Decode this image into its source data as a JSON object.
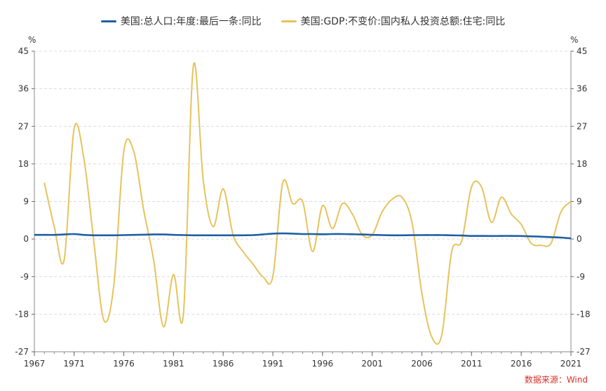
{
  "legend": [
    {
      "label": "美国:总人口:年度:最后一条:同比",
      "color": "#1f5fa5"
    },
    {
      "label": "美国:GDP:不变价:国内私人投资总额:住宅:同比",
      "color": "#e6c35c"
    }
  ],
  "source": "数据来源：Wind",
  "axis": {
    "left_unit": "%",
    "right_unit": "%"
  },
  "chart_data": {
    "type": "line",
    "xlim": [
      1967,
      2021
    ],
    "ylim": [
      -27,
      45
    ],
    "yticks": [
      45,
      36,
      27,
      18,
      9,
      0,
      -9,
      -18,
      -27
    ],
    "xticks": [
      1967,
      1971,
      1976,
      1981,
      1986,
      1991,
      1996,
      2001,
      2006,
      2011,
      2016,
      2021
    ],
    "grid": true,
    "legend_position": "top-center",
    "series": [
      {
        "name": "美国:总人口:年度:最后一条:同比",
        "color": "#1f5fa5",
        "x": [
          1967,
          1968,
          1969,
          1970,
          1971,
          1972,
          1973,
          1974,
          1975,
          1976,
          1977,
          1978,
          1979,
          1980,
          1981,
          1982,
          1983,
          1984,
          1985,
          1986,
          1987,
          1988,
          1989,
          1990,
          1991,
          1992,
          1993,
          1994,
          1995,
          1996,
          1997,
          1998,
          1999,
          2000,
          2001,
          2002,
          2003,
          2004,
          2005,
          2006,
          2007,
          2008,
          2009,
          2010,
          2011,
          2012,
          2013,
          2014,
          2015,
          2016,
          2017,
          2018,
          2019,
          2020,
          2021
        ],
        "y": [
          1.0,
          1.0,
          1.0,
          1.1,
          1.2,
          1.0,
          0.9,
          0.9,
          0.9,
          0.95,
          1.0,
          1.05,
          1.1,
          1.1,
          1.0,
          0.95,
          0.9,
          0.9,
          0.9,
          0.9,
          0.9,
          0.9,
          0.95,
          1.1,
          1.3,
          1.35,
          1.3,
          1.2,
          1.2,
          1.15,
          1.2,
          1.2,
          1.15,
          1.1,
          1.0,
          0.95,
          0.9,
          0.9,
          0.92,
          0.95,
          0.95,
          0.95,
          0.9,
          0.85,
          0.75,
          0.75,
          0.72,
          0.75,
          0.75,
          0.72,
          0.65,
          0.55,
          0.45,
          0.35,
          0.15
        ]
      },
      {
        "name": "美国:GDP:不变价:国内私人投资总额:住宅:同比",
        "color": "#e6c35c",
        "x": [
          1968,
          1969,
          1970,
          1971,
          1972,
          1973,
          1974,
          1975,
          1976,
          1977,
          1978,
          1979,
          1980,
          1981,
          1982,
          1983,
          1984,
          1985,
          1986,
          1987,
          1988,
          1989,
          1990,
          1991,
          1992,
          1993,
          1994,
          1995,
          1996,
          1997,
          1998,
          1999,
          2000,
          2001,
          2002,
          2003,
          2004,
          2005,
          2006,
          2007,
          2008,
          2009,
          2010,
          2011,
          2012,
          2013,
          2014,
          2015,
          2016,
          2017,
          2018,
          2019,
          2020,
          2021
        ],
        "y": [
          13.5,
          3,
          -5,
          26.5,
          19,
          -1,
          -19.5,
          -11,
          21,
          21,
          7,
          -5,
          -21,
          -8.5,
          -18,
          41.5,
          14,
          3,
          12,
          1,
          -3,
          -6,
          -9,
          -9,
          13.5,
          8.5,
          9,
          -3,
          8,
          2.5,
          8.5,
          6,
          1,
          1,
          6.5,
          9.5,
          10,
          4,
          -13,
          -23.5,
          -23,
          -3,
          -0.5,
          12.5,
          12.5,
          4,
          10,
          6,
          3.5,
          -1,
          -1.5,
          -1,
          6.5,
          9
        ]
      }
    ]
  }
}
